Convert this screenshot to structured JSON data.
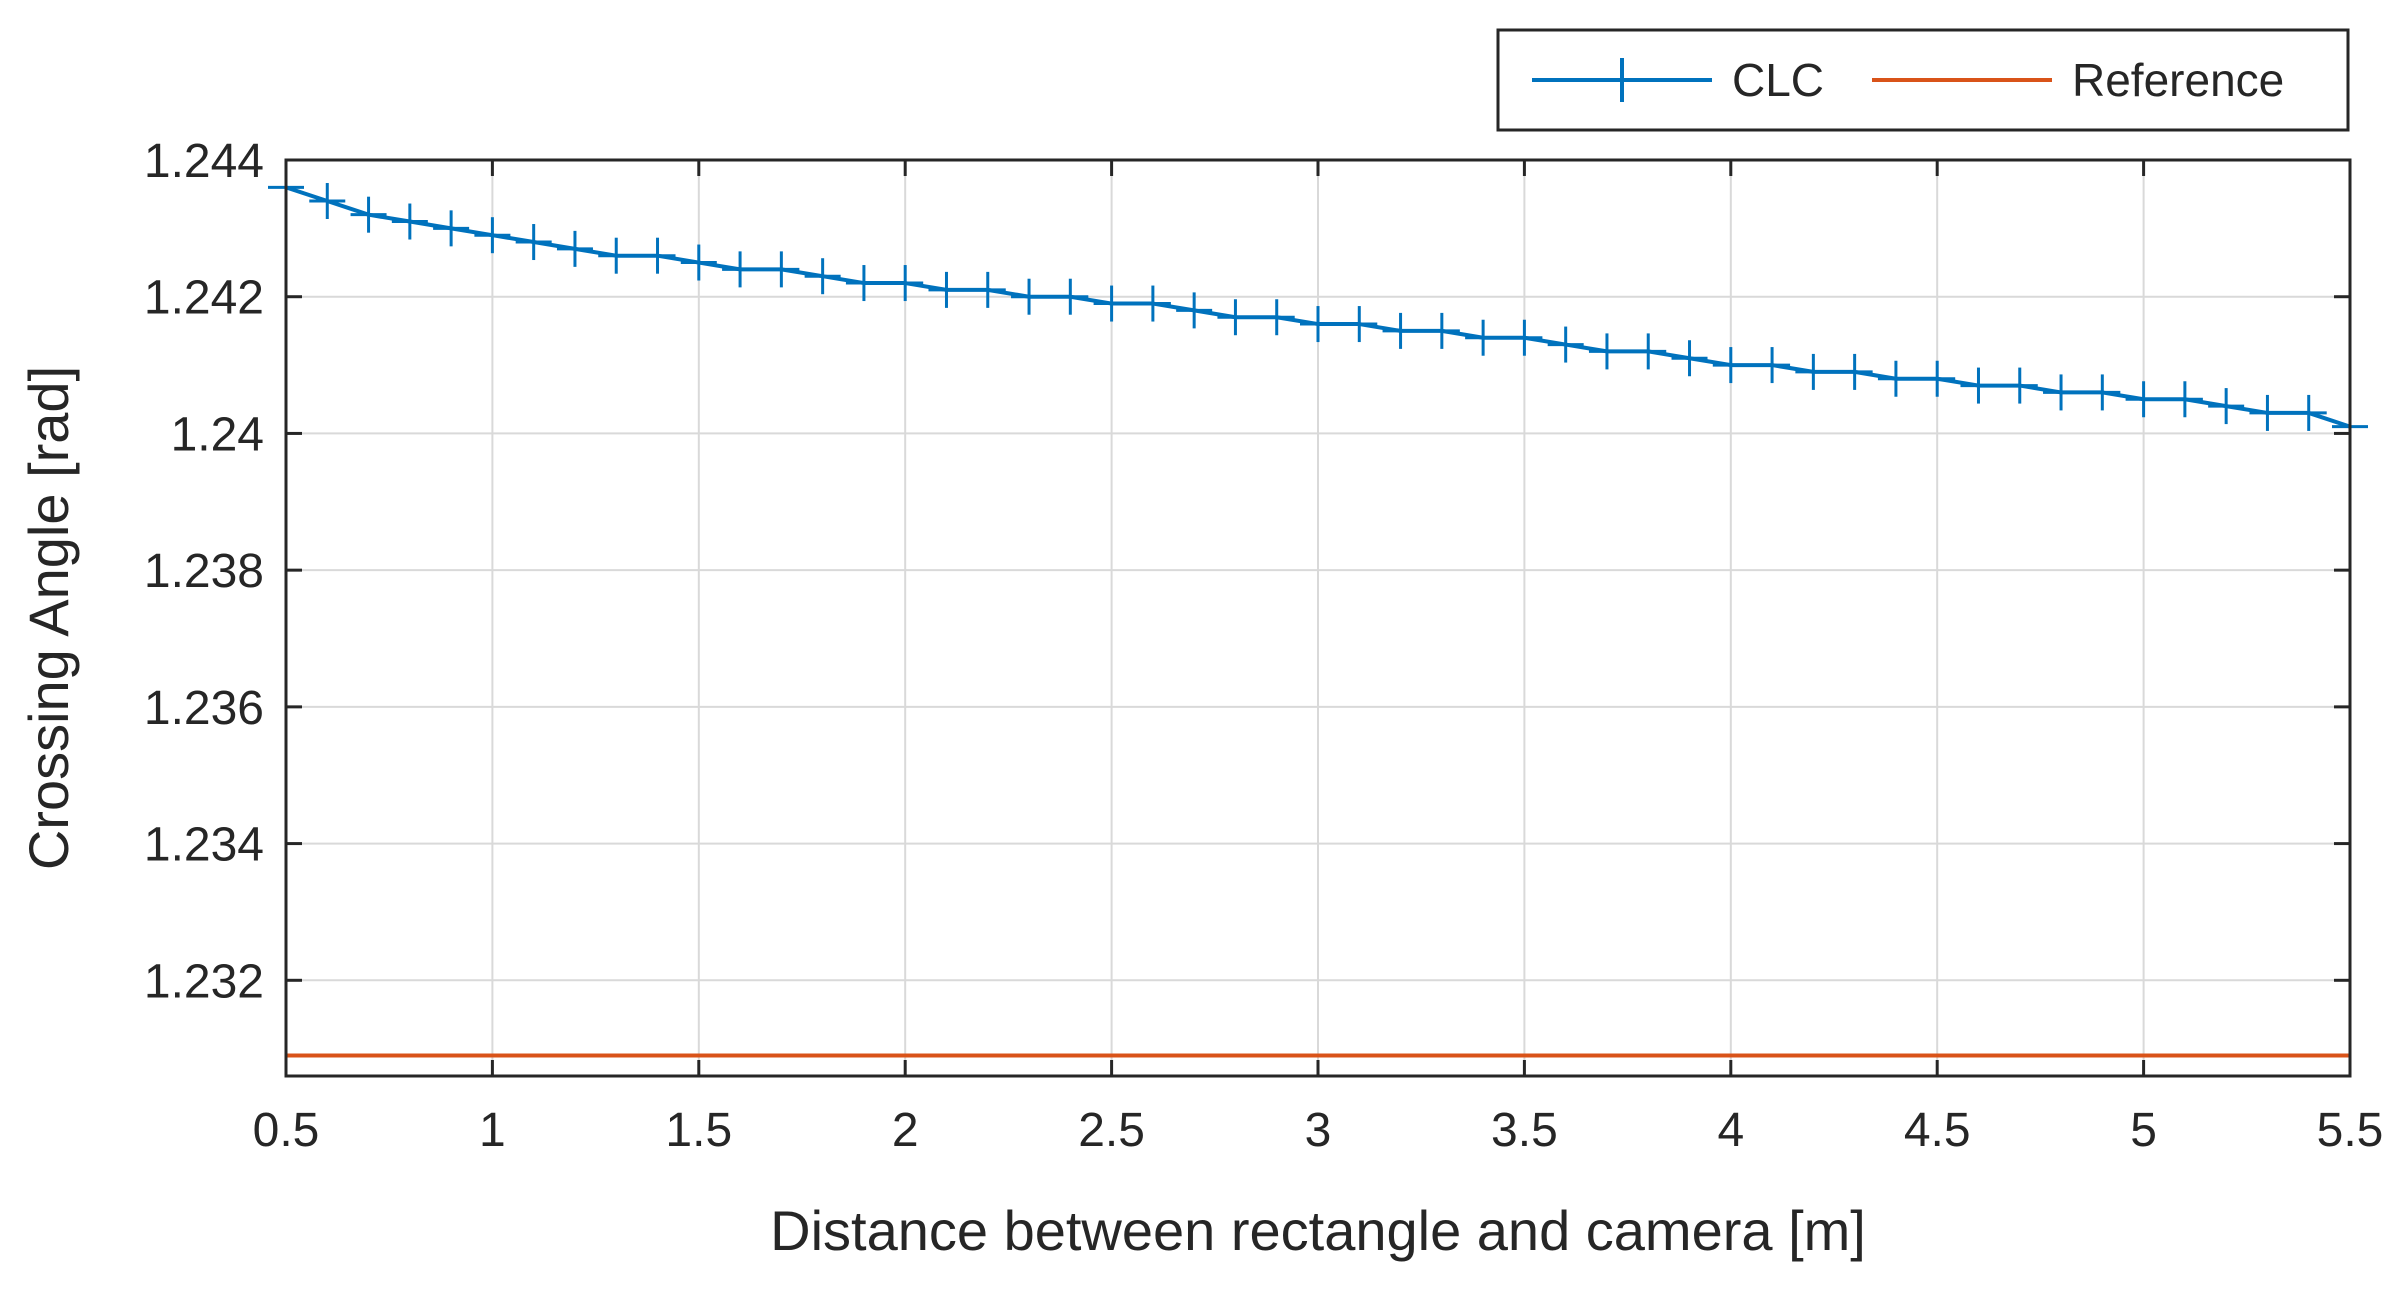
{
  "chart_data": {
    "type": "line",
    "title": "",
    "xlabel": "Distance between rectangle and camera [m]",
    "ylabel": "Crossing Angle [rad]",
    "xlim": [
      0.5,
      5.5
    ],
    "ylim": [
      1.2306,
      1.244
    ],
    "xticks": [
      0.5,
      1,
      1.5,
      2,
      2.5,
      3,
      3.5,
      4,
      4.5,
      5,
      5.5
    ],
    "xtick_labels": [
      "0.5",
      "1",
      "1.5",
      "2",
      "2.5",
      "3",
      "3.5",
      "4",
      "4.5",
      "5",
      "5.5"
    ],
    "yticks": [
      1.232,
      1.234,
      1.236,
      1.238,
      1.24,
      1.242,
      1.244
    ],
    "ytick_labels": [
      "1.232",
      "1.234",
      "1.236",
      "1.238",
      "1.24",
      "1.242",
      "1.244"
    ],
    "grid": true,
    "legend_position": "top-right",
    "series": [
      {
        "name": "CLC",
        "color": "#0072BD",
        "marker": "plus",
        "x": [
          0.5,
          0.6,
          0.7,
          0.8,
          0.9,
          1.0,
          1.1,
          1.2,
          1.3,
          1.4,
          1.5,
          1.6,
          1.7,
          1.8,
          1.9,
          2.0,
          2.1,
          2.2,
          2.3,
          2.4,
          2.5,
          2.6,
          2.7,
          2.8,
          2.9,
          3.0,
          3.1,
          3.2,
          3.3,
          3.4,
          3.5,
          3.6,
          3.7,
          3.8,
          3.9,
          4.0,
          4.1,
          4.2,
          4.3,
          4.4,
          4.5,
          4.6,
          4.7,
          4.8,
          4.9,
          5.0,
          5.1,
          5.2,
          5.3,
          5.4,
          5.5
        ],
        "y": [
          1.2436,
          1.2434,
          1.2432,
          1.2431,
          1.243,
          1.2429,
          1.2428,
          1.2427,
          1.2426,
          1.2426,
          1.2425,
          1.2424,
          1.2424,
          1.2423,
          1.2422,
          1.2422,
          1.2421,
          1.2421,
          1.242,
          1.242,
          1.2419,
          1.2419,
          1.2418,
          1.2417,
          1.2417,
          1.2416,
          1.2416,
          1.2415,
          1.2415,
          1.2414,
          1.2414,
          1.2413,
          1.2412,
          1.2412,
          1.2411,
          1.241,
          1.241,
          1.2409,
          1.2409,
          1.2408,
          1.2408,
          1.2407,
          1.2407,
          1.2406,
          1.2406,
          1.2405,
          1.2405,
          1.2404,
          1.2403,
          1.2403,
          1.2401
        ]
      },
      {
        "name": "Reference",
        "color": "#D95319",
        "marker": "none",
        "x": [
          0.5,
          5.5
        ],
        "y": [
          1.2309,
          1.2309
        ]
      }
    ]
  }
}
